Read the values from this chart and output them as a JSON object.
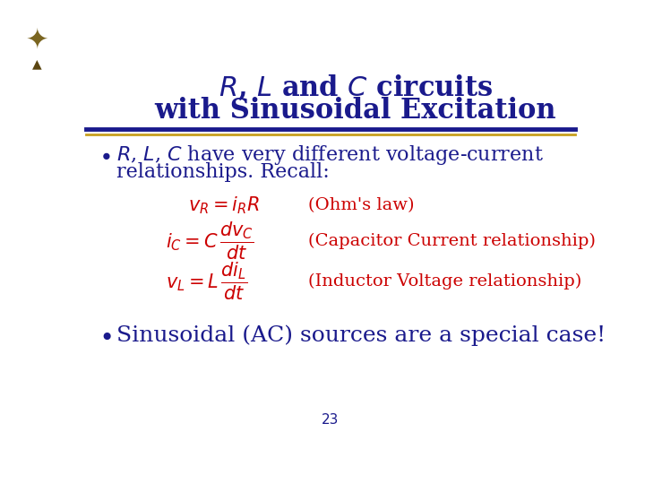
{
  "background_color": "#ffffff",
  "title_line1": "$\\mathit{R}$, $\\mathit{L}$ and $\\mathit{C}$ circuits",
  "title_line2": "with Sinusoidal Excitation",
  "title_color": "#1a1a8c",
  "title_fontsize": 22,
  "separator_color_top": "#1a1a8c",
  "separator_color_bottom": "#c8a020",
  "bullet1_line1": "$\\mathit{R}$, $\\mathit{L}$, $\\mathit{C}$ have very different voltage-current",
  "bullet1_line2": "relationships. Recall:",
  "bullet1_color": "#1a1a8c",
  "bullet1_fontsize": 16,
  "eq1": "$v_R = i_R R$",
  "eq1_label": "(Ohm's law)",
  "eq2": "$i_C = C\\,\\dfrac{dv_C}{dt}$",
  "eq2_label": "(Capacitor Current relationship)",
  "eq3": "$v_L = L\\,\\dfrac{di_L}{dt}$",
  "eq3_label": "(Inductor Voltage relationship)",
  "eq_color": "#cc0000",
  "eq_fontsize": 15,
  "label_color": "#cc0000",
  "label_fontsize": 14,
  "bullet2_text": "Sinusoidal (AC) sources are a special case!",
  "bullet2_color": "#1a1a8c",
  "bullet2_fontsize": 18,
  "page_number": "23",
  "page_number_color": "#1a1a8c",
  "page_number_fontsize": 11
}
